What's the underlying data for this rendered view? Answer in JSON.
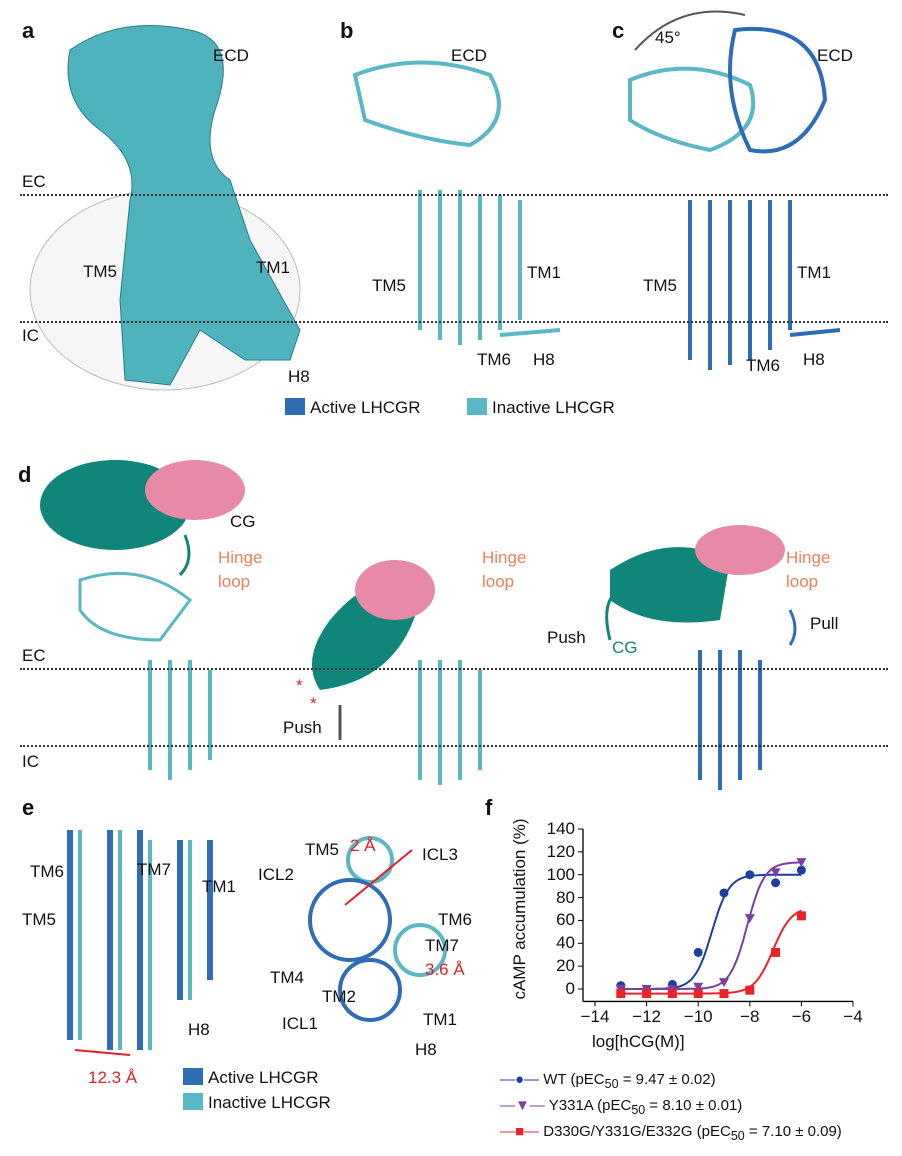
{
  "panels": {
    "a": "a",
    "b": "b",
    "c": "c",
    "d": "d",
    "e": "e",
    "f": "f"
  },
  "labels": {
    "ecd": "ECD",
    "ec": "EC",
    "ic": "IC",
    "tm1": "TM1",
    "tm2": "TM2",
    "tm4": "TM4",
    "tm5": "TM5",
    "tm6": "TM6",
    "tm7": "TM7",
    "h8": "H8",
    "icl1": "ICL1",
    "icl2": "ICL2",
    "icl3": "ICL3",
    "cg": "CG",
    "hinge_loop_1": "Hinge",
    "hinge_loop_2": "loop",
    "push": "Push",
    "pull": "Pull",
    "rotation": "45°",
    "asterisk": "*",
    "dist_tm6": "12.3 Å",
    "dist_tm5": "2 Å",
    "dist_tm7": "3.6 Å"
  },
  "legend": {
    "active": "Active LHCGR",
    "inactive": "Inactive LHCGR"
  },
  "colors": {
    "active": "#2e6db4",
    "inactive": "#5ab8c4",
    "density": "#4fb3be",
    "cg_teal": "#10857a",
    "cg_pink": "#e68aa8",
    "hinge": "#e8825a",
    "annot_red": "#e0202a"
  },
  "chart_data": {
    "type": "scatter",
    "xlabel": "log[hCG(M)]",
    "ylabel": "cAMP accumulation (%)",
    "xlim": [
      -14,
      -4
    ],
    "ylim": [
      -10,
      140
    ],
    "xticks": [
      "−14",
      "−12",
      "−10",
      "−8",
      "−6",
      "−4"
    ],
    "yticks": [
      "0",
      "20",
      "40",
      "60",
      "80",
      "100",
      "120",
      "140"
    ],
    "legend_position": "bottom",
    "series": [
      {
        "name": "WT (pEC50 = 9.47 ± 0.02)",
        "label_pre": "WT (pEC",
        "label_sub": "50",
        "label_post": " = 9.47 ± 0.02)",
        "color": "#1f3fa0",
        "marker": "circle",
        "pEC50": 9.47,
        "x": [
          -13,
          -12,
          -11,
          -10,
          -9,
          -8,
          -7,
          -6
        ],
        "y": [
          3,
          -1,
          4,
          32,
          84,
          100,
          93,
          104
        ],
        "fit": {
          "bottom": 0,
          "top": 100,
          "hill": 1.3
        }
      },
      {
        "name": "Y331A (pEC50 = 8.10 ± 0.01)",
        "label_pre": "Y331A (pEC",
        "label_sub": "50",
        "label_post": " = 8.10 ± 0.01)",
        "color": "#7b3fa0",
        "marker": "triangle-down",
        "pEC50": 8.1,
        "x": [
          -13,
          -12,
          -11,
          -10,
          -9,
          -8,
          -7,
          -6
        ],
        "y": [
          0,
          0,
          0,
          2,
          6,
          62,
          102,
          111
        ],
        "fit": {
          "bottom": 0,
          "top": 111,
          "hill": 1.3
        }
      },
      {
        "name": "D330G/Y331G/E332G (pEC50 = 7.10 ± 0.09)",
        "label_pre": "D330G/Y331G/E332G (pEC",
        "label_sub": "50",
        "label_post": " = 7.10 ± 0.09)",
        "color": "#e8242a",
        "marker": "square",
        "pEC50": 7.1,
        "x": [
          -13,
          -12,
          -11,
          -10,
          -9,
          -8,
          -7,
          -6
        ],
        "y": [
          -4,
          -4,
          -4,
          -4,
          -4,
          -1,
          32,
          64
        ],
        "fit": {
          "bottom": -4,
          "top": 72,
          "hill": 1.2
        }
      }
    ]
  }
}
